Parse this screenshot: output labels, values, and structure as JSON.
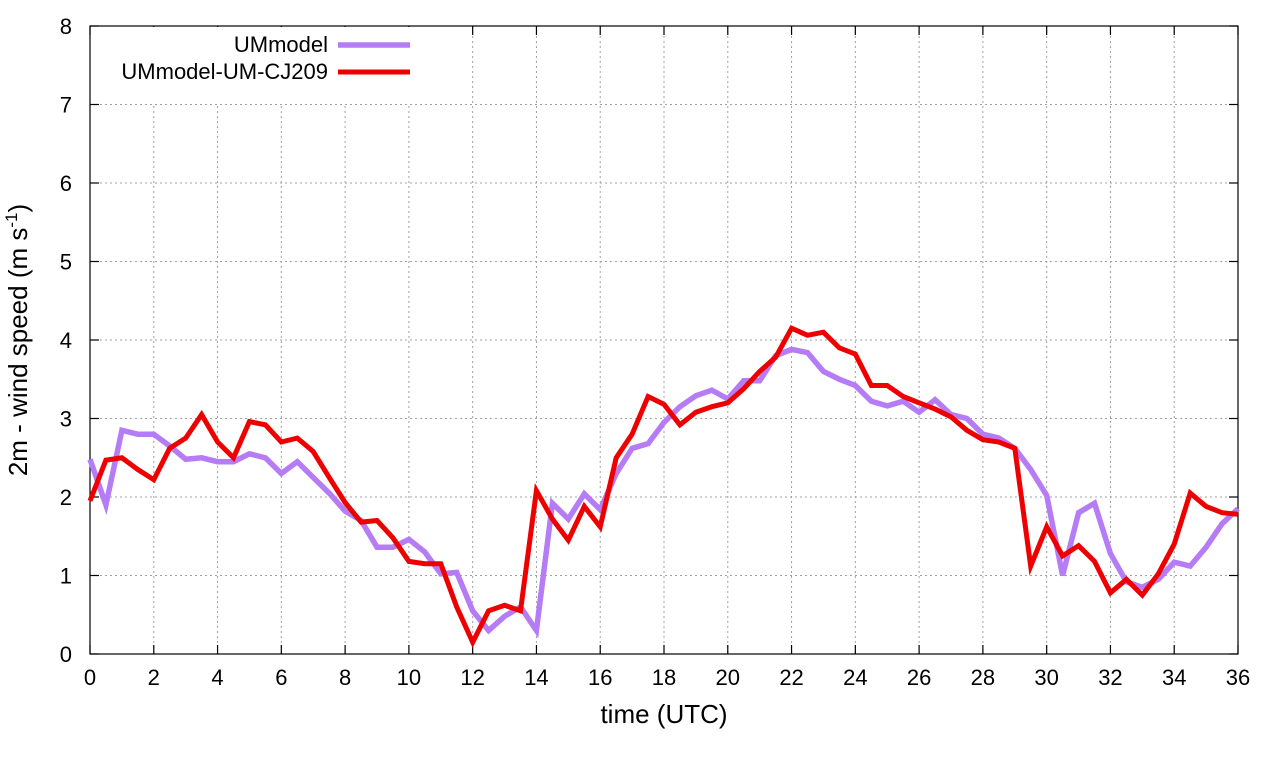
{
  "chart_data": {
    "type": "line",
    "xlabel": "time (UTC)",
    "ylabel_main": "2m - wind speed  (m s",
    "ylabel_sup": "-1",
    "ylabel_end": ")",
    "xlim": [
      0,
      36
    ],
    "ylim": [
      0,
      8
    ],
    "xticks": [
      0,
      2,
      4,
      6,
      8,
      10,
      12,
      14,
      16,
      18,
      20,
      22,
      24,
      26,
      28,
      30,
      32,
      34,
      36
    ],
    "yticks": [
      0,
      1,
      2,
      3,
      4,
      5,
      6,
      7,
      8
    ],
    "grid": true,
    "legend_position": "top-left",
    "x": [
      0,
      0.5,
      1,
      1.5,
      2,
      2.5,
      3,
      3.5,
      4,
      4.5,
      5,
      5.5,
      6,
      6.5,
      7,
      7.5,
      8,
      8.5,
      9,
      9.5,
      10,
      10.5,
      11,
      11.5,
      12,
      12.5,
      13,
      13.5,
      14,
      14.5,
      15,
      15.5,
      16,
      16.5,
      17,
      17.5,
      18,
      18.5,
      19,
      19.5,
      20,
      20.5,
      21,
      21.5,
      22,
      22.5,
      23,
      23.5,
      24,
      24.5,
      25,
      25.5,
      26,
      26.5,
      27,
      27.5,
      28,
      28.5,
      29,
      29.5,
      30,
      30.5,
      31,
      31.5,
      32,
      32.5,
      33,
      33.5,
      34,
      34.5,
      35,
      35.5,
      36
    ],
    "series": [
      {
        "name": "UMmodel",
        "color": "#b57cf5",
        "values": [
          2.48,
          1.9,
          2.85,
          2.8,
          2.8,
          2.65,
          2.48,
          2.5,
          2.45,
          2.45,
          2.55,
          2.5,
          2.3,
          2.45,
          2.25,
          2.05,
          1.82,
          1.7,
          1.36,
          1.36,
          1.46,
          1.3,
          1.02,
          1.04,
          0.55,
          0.3,
          0.48,
          0.6,
          0.3,
          1.92,
          1.72,
          2.04,
          1.84,
          2.3,
          2.62,
          2.68,
          2.95,
          3.15,
          3.29,
          3.36,
          3.25,
          3.48,
          3.48,
          3.8,
          3.88,
          3.84,
          3.6,
          3.5,
          3.42,
          3.22,
          3.16,
          3.22,
          3.08,
          3.24,
          3.05,
          3.0,
          2.8,
          2.75,
          2.62,
          2.35,
          2.02,
          1.0,
          1.8,
          1.92,
          1.28,
          0.92,
          0.85,
          0.95,
          1.17,
          1.12,
          1.36,
          1.66,
          1.85
        ]
      },
      {
        "name": "UMmodel-UM-CJ209",
        "color": "#ee0000",
        "values": [
          1.95,
          2.47,
          2.5,
          2.35,
          2.22,
          2.62,
          2.75,
          3.05,
          2.7,
          2.5,
          2.96,
          2.92,
          2.7,
          2.75,
          2.58,
          2.25,
          1.93,
          1.68,
          1.7,
          1.48,
          1.18,
          1.15,
          1.15,
          0.6,
          0.15,
          0.55,
          0.62,
          0.55,
          2.08,
          1.72,
          1.45,
          1.88,
          1.62,
          2.5,
          2.8,
          3.28,
          3.18,
          2.92,
          3.08,
          3.15,
          3.2,
          3.38,
          3.6,
          3.78,
          4.15,
          4.06,
          4.1,
          3.9,
          3.82,
          3.42,
          3.42,
          3.28,
          3.2,
          3.12,
          3.02,
          2.85,
          2.73,
          2.7,
          2.62,
          1.12,
          1.62,
          1.25,
          1.38,
          1.18,
          0.78,
          0.95,
          0.75,
          1.02,
          1.4,
          2.05,
          1.88,
          1.8,
          1.78
        ]
      }
    ]
  }
}
